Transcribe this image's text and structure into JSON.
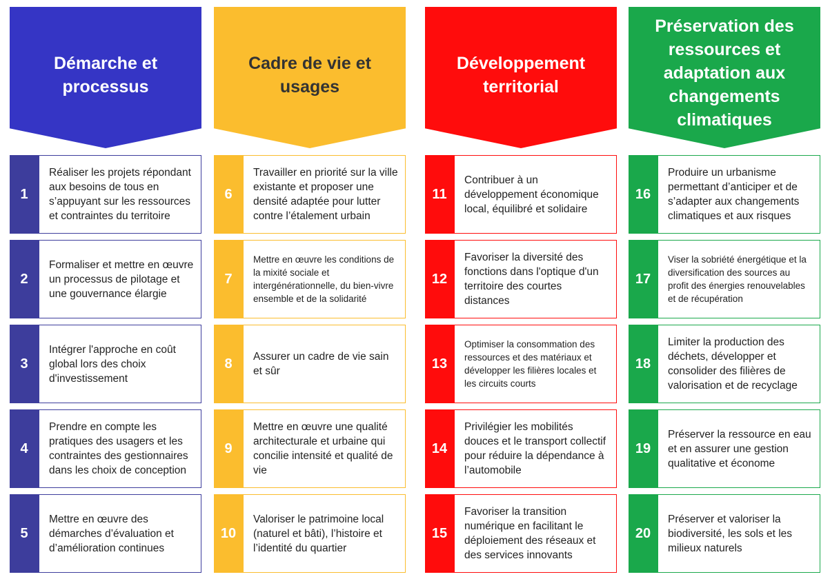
{
  "columns": [
    {
      "title": "Démarche et processus",
      "color": "#3535c5",
      "num_color": "#3d3d9c",
      "items": [
        {
          "number": "1",
          "text": "Réaliser les projets répondant aux besoins de tous en s’appuyant sur les ressources et contraintes du territoire"
        },
        {
          "number": "2",
          "text": "Formaliser et mettre en œuvre un processus de pilotage et une gouvernance élargie"
        },
        {
          "number": "3",
          "text": "Intégrer l'approche en coût global lors des choix d'investissement"
        },
        {
          "number": "4",
          "text": "Prendre en compte les pratiques des usagers et les contraintes des gestionnaires dans les choix de conception"
        },
        {
          "number": "5",
          "text": "Mettre en œuvre des démarches d’évaluation et d’amélioration continues"
        }
      ]
    },
    {
      "title": "Cadre de vie et usages",
      "color": "#fbbd2e",
      "num_color": "#fbbd2e",
      "items": [
        {
          "number": "6",
          "text": "Travailler en priorité sur la ville existante et proposer une densité adaptée pour lutter contre l’étalement urbain"
        },
        {
          "number": "7",
          "text": "Mettre en œuvre les conditions de la mixité sociale et intergénérationnelle, du bien-vivre ensemble et de la solidarité"
        },
        {
          "number": "8",
          "text": "Assurer un cadre de vie sain et sûr"
        },
        {
          "number": "9",
          "text": "Mettre en œuvre une qualité architecturale et urbaine qui concilie intensité et qualité de vie"
        },
        {
          "number": "10",
          "text": "Valoriser le patrimoine local (naturel et bâti), l’histoire et l’identité du quartier"
        }
      ]
    },
    {
      "title": "Développement territorial",
      "color": "#ff0c0c",
      "num_color": "#ff0c0c",
      "items": [
        {
          "number": "11",
          "text": "Contribuer à un développement économique local, équilibré et solidaire"
        },
        {
          "number": "12",
          "text": "Favoriser la diversité des fonctions dans l'optique d'un territoire des courtes distances"
        },
        {
          "number": "13",
          "text": "Optimiser la consommation des ressources et des matériaux et développer les filières locales et les circuits courts"
        },
        {
          "number": "14",
          "text": "Privilégier les mobilités douces et le transport collectif pour réduire la dépendance à l’automobile"
        },
        {
          "number": "15",
          "text": "Favoriser la transition numérique en facilitant le déploiement des réseaux et des services innovants"
        }
      ]
    },
    {
      "title": "Préservation des ressources et adaptation aux changements climatiques",
      "color": "#1aa84b",
      "num_color": "#1aa84b",
      "items": [
        {
          "number": "16",
          "text": "Produire un urbanisme permettant d’anticiper et de s’adapter aux changements climatiques et aux risques"
        },
        {
          "number": "17",
          "text": "Viser la sobriété énergétique et la diversification des sources au profit des énergies renouvelables et de récupération"
        },
        {
          "number": "18",
          "text": "Limiter la production des déchets, développer et consolider des filières de valorisation et de recyclage"
        },
        {
          "number": "19",
          "text": "Préserver la ressource en eau et en assurer une gestion qualitative et économe"
        },
        {
          "number": "20",
          "text": "Préserver et valoriser la biodiversité, les sols et les milieux naturels"
        }
      ]
    }
  ]
}
